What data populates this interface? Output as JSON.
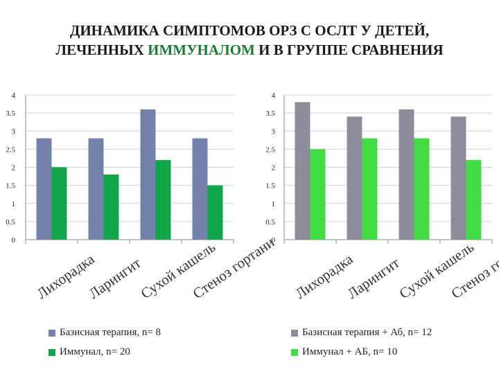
{
  "title": {
    "line1": "ДИНАМИКА СИМПТОМОВ ОРЗ С ОСЛТ У ДЕТЕЙ,",
    "line2_pre": "ЛЕЧЕННЫХ ",
    "line2_highlight": "ИММУНАЛОМ",
    "line2_post": " И В ГРУППЕ СРАВНЕНИЯ"
  },
  "colors": {
    "highlight": "#1e7a38",
    "axis": "#888888",
    "grid": "#d0d0d0"
  },
  "chart_data": [
    {
      "type": "bar",
      "categories": [
        "Лихорадка",
        "Ларингит",
        "Сухой кашель",
        "Стеноз гортани"
      ],
      "yticks": [
        "0",
        "0.5",
        "1",
        "1.5",
        "2",
        "2.5",
        "3",
        "3.5",
        "4"
      ],
      "ylim": [
        0,
        4
      ],
      "grid": true,
      "legend_position": "bottom",
      "series": [
        {
          "name": "Базисная терапия, n= 8",
          "values": [
            2.8,
            2.8,
            3.6,
            2.8
          ],
          "color": "#7481a8"
        },
        {
          "name": "Иммунал, n= 20",
          "values": [
            2.0,
            1.8,
            2.2,
            1.5
          ],
          "color": "#12a64a"
        }
      ]
    },
    {
      "type": "bar",
      "categories": [
        "Лихорадка",
        "Ларингит",
        "Сухой кашель",
        "Стеноз гортани"
      ],
      "yticks": [
        "0",
        "0.5",
        "1",
        "1.5",
        "2",
        "2.5",
        "3",
        "3.5",
        "4"
      ],
      "ylim": [
        0,
        4
      ],
      "grid": true,
      "legend_position": "bottom",
      "series": [
        {
          "name": "Базисная терапия + Аб, n= 12",
          "values": [
            3.8,
            3.4,
            3.6,
            3.4
          ],
          "color": "#8c8c9a"
        },
        {
          "name": "Иммунал + АБ, n= 10",
          "values": [
            2.5,
            2.8,
            2.8,
            2.2
          ],
          "color": "#44dc44"
        }
      ]
    }
  ]
}
